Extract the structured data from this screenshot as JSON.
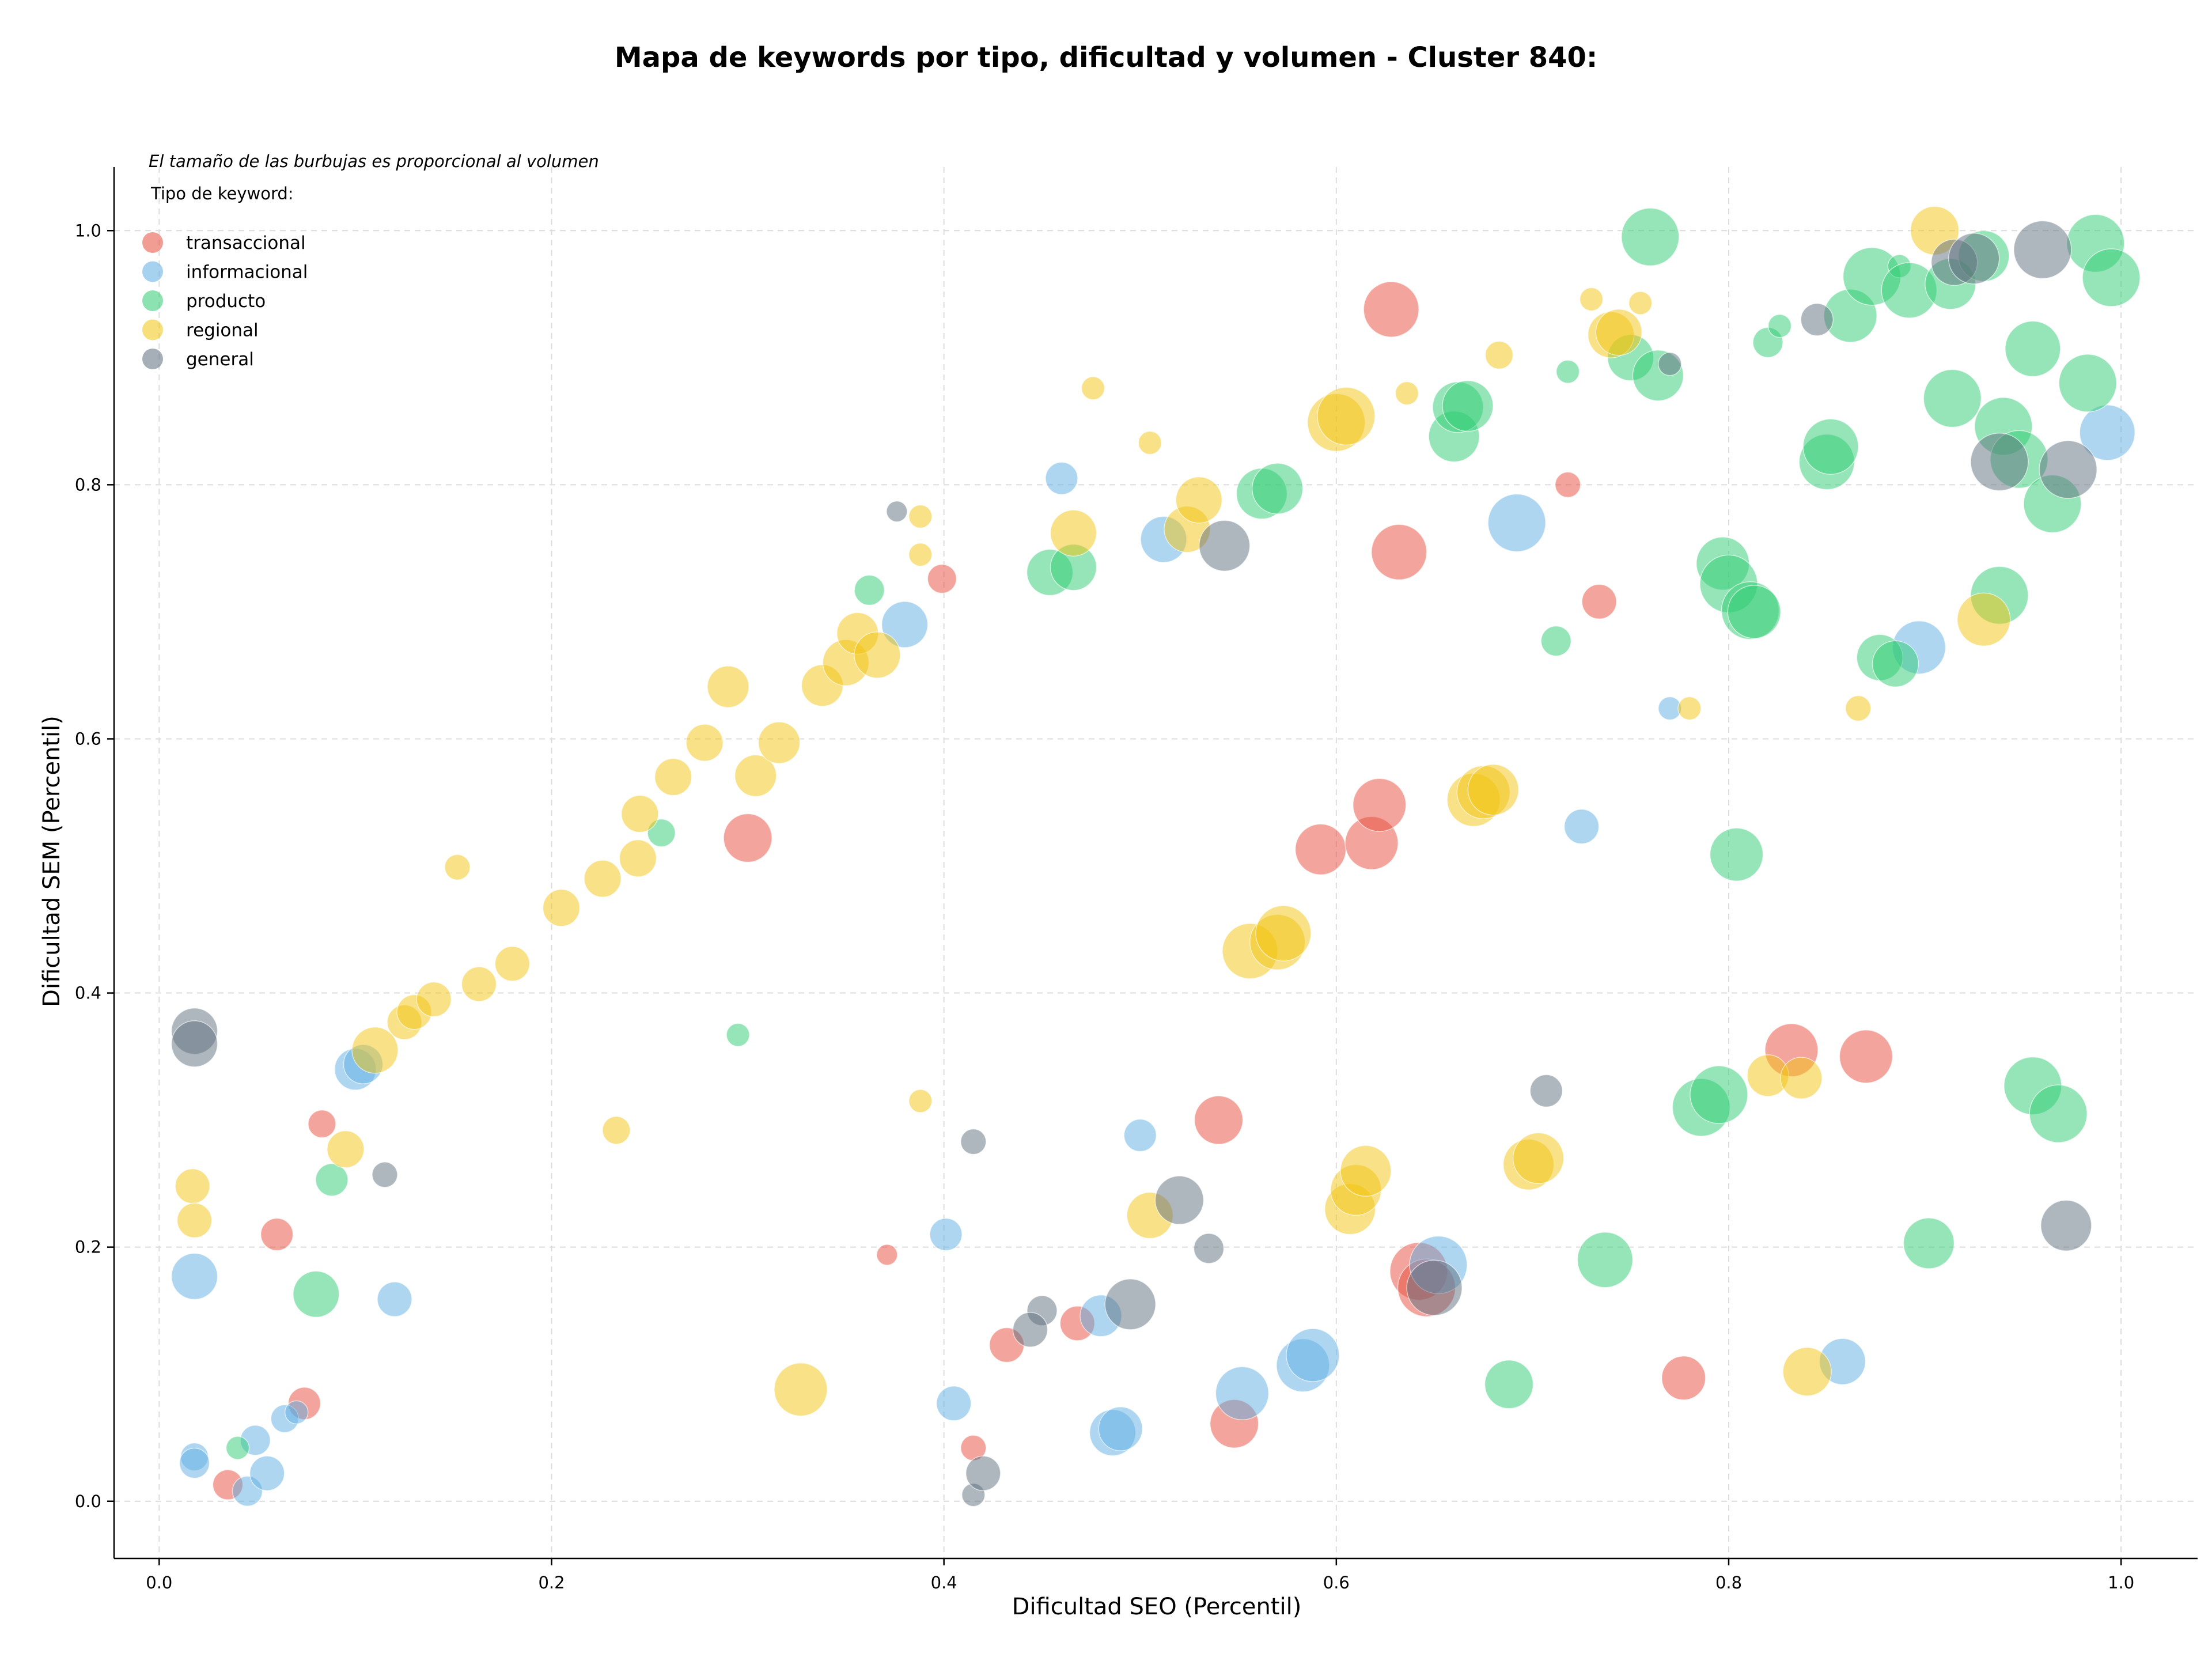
{
  "chart_data": {
    "type": "scatter",
    "title": "Mapa de keywords por tipo, dificultad y volumen - Cluster 840:",
    "xlabel": "Dificultad SEO (Percentil)",
    "ylabel": "Dificultad SEM (Percentil)",
    "xlim": [
      -0.023,
      1.039
    ],
    "ylim": [
      -0.045,
      1.05
    ],
    "xticks": [
      0.0,
      0.2,
      0.4,
      0.6,
      0.8,
      1.0
    ],
    "yticks": [
      0.0,
      0.2,
      0.4,
      0.6,
      0.8,
      1.0
    ],
    "xtick_labels": [
      "0.0",
      "0.2",
      "0.4",
      "0.6",
      "0.8",
      "1.0"
    ],
    "ytick_labels": [
      "0.0",
      "0.2",
      "0.4",
      "0.6",
      "0.8",
      "1.0"
    ],
    "grid": true,
    "size_note": "El tamaño de las burbujas es proporcional al volumen",
    "legend_title": "Tipo de keyword:",
    "legend_position": "top-left",
    "series": [
      {
        "name": "transaccional",
        "color": "#e74c3c",
        "points": [
          [
            0.035,
            0.013,
            26
          ],
          [
            0.074,
            0.077,
            28
          ],
          [
            0.06,
            0.21,
            28
          ],
          [
            0.083,
            0.297,
            24
          ],
          [
            0.3,
            0.522,
            42
          ],
          [
            0.399,
            0.726,
            25
          ],
          [
            0.371,
            0.194,
            18
          ],
          [
            0.415,
            0.042,
            22
          ],
          [
            0.432,
            0.123,
            30
          ],
          [
            0.468,
            0.14,
            30
          ],
          [
            0.54,
            0.3,
            42
          ],
          [
            0.548,
            0.061,
            42
          ],
          [
            0.592,
            0.513,
            44
          ],
          [
            0.618,
            0.518,
            46
          ],
          [
            0.622,
            0.548,
            46
          ],
          [
            0.628,
            0.938,
            48
          ],
          [
            0.632,
            0.747,
            48
          ],
          [
            0.642,
            0.181,
            50
          ],
          [
            0.646,
            0.168,
            50
          ],
          [
            0.718,
            0.8,
            22
          ],
          [
            0.734,
            0.708,
            30
          ],
          [
            0.777,
            0.097,
            38
          ],
          [
            0.832,
            0.355,
            46
          ],
          [
            0.87,
            0.35,
            46
          ]
        ]
      },
      {
        "name": "informacional",
        "color": "#5dade2",
        "points": [
          [
            0.018,
            0.177,
            40
          ],
          [
            0.018,
            0.035,
            24
          ],
          [
            0.018,
            0.03,
            26
          ],
          [
            0.045,
            0.008,
            26
          ],
          [
            0.049,
            0.048,
            26
          ],
          [
            0.055,
            0.022,
            30
          ],
          [
            0.064,
            0.065,
            24
          ],
          [
            0.07,
            0.07,
            20
          ],
          [
            0.1,
            0.34,
            36
          ],
          [
            0.104,
            0.344,
            34
          ],
          [
            0.12,
            0.159,
            30
          ],
          [
            0.38,
            0.69,
            40
          ],
          [
            0.401,
            0.21,
            28
          ],
          [
            0.405,
            0.077,
            30
          ],
          [
            0.46,
            0.805,
            28
          ],
          [
            0.48,
            0.146,
            36
          ],
          [
            0.486,
            0.054,
            40
          ],
          [
            0.49,
            0.057,
            38
          ],
          [
            0.5,
            0.288,
            28
          ],
          [
            0.512,
            0.757,
            40
          ],
          [
            0.552,
            0.085,
            46
          ],
          [
            0.583,
            0.107,
            46
          ],
          [
            0.588,
            0.115,
            46
          ],
          [
            0.652,
            0.186,
            50
          ],
          [
            0.692,
            0.77,
            50
          ],
          [
            0.725,
            0.531,
            30
          ],
          [
            0.77,
            0.624,
            20
          ],
          [
            0.858,
            0.11,
            40
          ],
          [
            0.897,
            0.672,
            46
          ],
          [
            0.993,
            0.841,
            48
          ]
        ]
      },
      {
        "name": "producto",
        "color": "#2ecc71",
        "points": [
          [
            0.04,
            0.042,
            20
          ],
          [
            0.08,
            0.163,
            40
          ],
          [
            0.088,
            0.253,
            28
          ],
          [
            0.256,
            0.526,
            24
          ],
          [
            0.295,
            0.367,
            20
          ],
          [
            0.362,
            0.717,
            26
          ],
          [
            0.454,
            0.731,
            40
          ],
          [
            0.466,
            0.735,
            40
          ],
          [
            0.562,
            0.793,
            44
          ],
          [
            0.57,
            0.797,
            44
          ],
          [
            0.66,
            0.838,
            44
          ],
          [
            0.662,
            0.861,
            44
          ],
          [
            0.667,
            0.862,
            44
          ],
          [
            0.688,
            0.092,
            42
          ],
          [
            0.712,
            0.677,
            26
          ],
          [
            0.718,
            0.889,
            20
          ],
          [
            0.737,
            0.19,
            48
          ],
          [
            0.75,
            0.9,
            40
          ],
          [
            0.76,
            0.995,
            50
          ],
          [
            0.764,
            0.886,
            44
          ],
          [
            0.786,
            0.31,
            50
          ],
          [
            0.795,
            0.32,
            50
          ],
          [
            0.797,
            0.738,
            46
          ],
          [
            0.8,
            0.722,
            50
          ],
          [
            0.804,
            0.509,
            46
          ],
          [
            0.811,
            0.701,
            50
          ],
          [
            0.813,
            0.7,
            46
          ],
          [
            0.82,
            0.912,
            26
          ],
          [
            0.826,
            0.925,
            20
          ],
          [
            0.85,
            0.818,
            48
          ],
          [
            0.852,
            0.83,
            48
          ],
          [
            0.862,
            0.933,
            46
          ],
          [
            0.873,
            0.964,
            50
          ],
          [
            0.877,
            0.664,
            40
          ],
          [
            0.885,
            0.659,
            40
          ],
          [
            0.887,
            0.972,
            20
          ],
          [
            0.892,
            0.953,
            48
          ],
          [
            0.902,
            0.203,
            44
          ],
          [
            0.913,
            0.958,
            44
          ],
          [
            0.914,
            0.868,
            50
          ],
          [
            0.93,
            0.98,
            44
          ],
          [
            0.938,
            0.713,
            50
          ],
          [
            0.94,
            0.846,
            50
          ],
          [
            0.948,
            0.82,
            50
          ],
          [
            0.955,
            0.907,
            48
          ],
          [
            0.955,
            0.327,
            50
          ],
          [
            0.965,
            0.785,
            50
          ],
          [
            0.968,
            0.305,
            50
          ],
          [
            0.983,
            0.88,
            50
          ],
          [
            0.987,
            0.99,
            50
          ],
          [
            0.995,
            0.963,
            50
          ]
        ]
      },
      {
        "name": "regional",
        "color": "#f1c40f",
        "points": [
          [
            0.017,
            0.248,
            30
          ],
          [
            0.018,
            0.221,
            30
          ],
          [
            0.095,
            0.277,
            32
          ],
          [
            0.11,
            0.355,
            40
          ],
          [
            0.125,
            0.377,
            30
          ],
          [
            0.13,
            0.385,
            30
          ],
          [
            0.14,
            0.395,
            30
          ],
          [
            0.152,
            0.499,
            22
          ],
          [
            0.163,
            0.407,
            30
          ],
          [
            0.18,
            0.423,
            30
          ],
          [
            0.205,
            0.467,
            32
          ],
          [
            0.226,
            0.49,
            32
          ],
          [
            0.233,
            0.292,
            24
          ],
          [
            0.244,
            0.506,
            32
          ],
          [
            0.245,
            0.541,
            32
          ],
          [
            0.262,
            0.57,
            32
          ],
          [
            0.278,
            0.597,
            32
          ],
          [
            0.29,
            0.641,
            36
          ],
          [
            0.304,
            0.571,
            36
          ],
          [
            0.316,
            0.597,
            36
          ],
          [
            0.327,
            0.088,
            46
          ],
          [
            0.338,
            0.642,
            36
          ],
          [
            0.35,
            0.66,
            40
          ],
          [
            0.356,
            0.683,
            36
          ],
          [
            0.366,
            0.666,
            40
          ],
          [
            0.388,
            0.775,
            20
          ],
          [
            0.388,
            0.745,
            20
          ],
          [
            0.388,
            0.315,
            20
          ],
          [
            0.466,
            0.762,
            40
          ],
          [
            0.476,
            0.876,
            20
          ],
          [
            0.505,
            0.833,
            20
          ],
          [
            0.505,
            0.225,
            40
          ],
          [
            0.524,
            0.765,
            40
          ],
          [
            0.53,
            0.788,
            40
          ],
          [
            0.556,
            0.433,
            48
          ],
          [
            0.57,
            0.44,
            48
          ],
          [
            0.573,
            0.447,
            48
          ],
          [
            0.6,
            0.849,
            50
          ],
          [
            0.605,
            0.854,
            50
          ],
          [
            0.607,
            0.23,
            44
          ],
          [
            0.61,
            0.245,
            44
          ],
          [
            0.615,
            0.26,
            44
          ],
          [
            0.636,
            0.872,
            20
          ],
          [
            0.67,
            0.552,
            46
          ],
          [
            0.675,
            0.558,
            46
          ],
          [
            0.68,
            0.56,
            44
          ],
          [
            0.683,
            0.902,
            24
          ],
          [
            0.698,
            0.265,
            44
          ],
          [
            0.703,
            0.27,
            44
          ],
          [
            0.73,
            0.946,
            20
          ],
          [
            0.74,
            0.918,
            40
          ],
          [
            0.744,
            0.92,
            40
          ],
          [
            0.755,
            0.943,
            20
          ],
          [
            0.78,
            0.624,
            20
          ],
          [
            0.82,
            0.335,
            36
          ],
          [
            0.837,
            0.333,
            36
          ],
          [
            0.84,
            0.102,
            42
          ],
          [
            0.866,
            0.624,
            22
          ],
          [
            0.905,
            1.0,
            42
          ],
          [
            0.93,
            0.694,
            46
          ]
        ]
      },
      {
        "name": "general",
        "color": "#5d6d7e",
        "points": [
          [
            0.018,
            0.37,
            40
          ],
          [
            0.018,
            0.36,
            40
          ],
          [
            0.115,
            0.257,
            22
          ],
          [
            0.376,
            0.779,
            18
          ],
          [
            0.415,
            0.005,
            20
          ],
          [
            0.415,
            0.283,
            22
          ],
          [
            0.42,
            0.022,
            30
          ],
          [
            0.45,
            0.15,
            26
          ],
          [
            0.444,
            0.135,
            30
          ],
          [
            0.495,
            0.155,
            44
          ],
          [
            0.52,
            0.237,
            42
          ],
          [
            0.535,
            0.199,
            26
          ],
          [
            0.543,
            0.752,
            44
          ],
          [
            0.65,
            0.168,
            48
          ],
          [
            0.707,
            0.323,
            28
          ],
          [
            0.77,
            0.895,
            20
          ],
          [
            0.845,
            0.93,
            28
          ],
          [
            0.915,
            0.975,
            40
          ],
          [
            0.925,
            0.978,
            44
          ],
          [
            0.938,
            0.818,
            50
          ],
          [
            0.96,
            0.985,
            50
          ],
          [
            0.973,
            0.812,
            50
          ],
          [
            0.972,
            0.217,
            44
          ]
        ]
      }
    ]
  }
}
